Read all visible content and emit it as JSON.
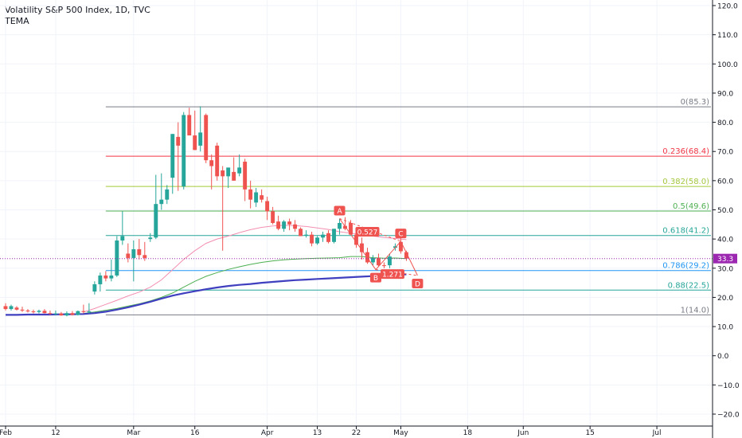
{
  "header": {
    "title": "Volatility S&P 500 Index, 1D, TVC",
    "indicator": "TEMA"
  },
  "colors": {
    "up": "#26a69a",
    "down": "#ef5350",
    "fast_ma": "#f48fb1",
    "mid_ma": "#4caf50",
    "slow_ma": "#3f3fbf",
    "price_line": "#9c27b0",
    "pattern": "#ef5350"
  },
  "chart_data": {
    "type": "candlestick",
    "title": "Volatility S&P 500 Index, 1D, TVC",
    "ylim": [
      -20,
      120
    ],
    "xlim": [
      -1,
      127
    ],
    "y_ticks": [
      -20,
      -10,
      0,
      10,
      20,
      30,
      40,
      50,
      60,
      70,
      80,
      90,
      100,
      110,
      120
    ],
    "y_tick_labels": [
      "−20.0",
      "−10.0",
      "0.0",
      "10.0",
      "20.0",
      "30.0",
      "40.0",
      "50.0",
      "60.0",
      "70.0",
      "80.0",
      "90.0",
      "100.0",
      "110.0",
      "120.0"
    ],
    "x_ticks": [
      {
        "label": "Feb",
        "x": 0
      },
      {
        "label": "12",
        "x": 9
      },
      {
        "label": "Mar",
        "x": 23
      },
      {
        "label": "16",
        "x": 34
      },
      {
        "label": "Apr",
        "x": 47
      },
      {
        "label": "13",
        "x": 56
      },
      {
        "label": "22",
        "x": 63
      },
      {
        "label": "May",
        "x": 71
      },
      {
        "label": "18",
        "x": 83
      },
      {
        "label": "Jun",
        "x": 93
      },
      {
        "label": "15",
        "x": 105
      },
      {
        "label": "Jul",
        "x": 117
      }
    ],
    "candles": [
      [
        0,
        17.0,
        18.0,
        15.5,
        16.0
      ],
      [
        1,
        16.0,
        17.5,
        15.5,
        17.0
      ],
      [
        2,
        16.5,
        17.0,
        15.5,
        15.8
      ],
      [
        3,
        15.8,
        16.8,
        15.0,
        15.5
      ],
      [
        4,
        15.5,
        16.0,
        14.8,
        15.2
      ],
      [
        5,
        15.2,
        15.8,
        14.5,
        15.0
      ],
      [
        6,
        15.0,
        15.8,
        14.5,
        15.4
      ],
      [
        7,
        15.4,
        16.0,
        14.5,
        14.6
      ],
      [
        8,
        14.6,
        15.5,
        14.0,
        14.4
      ],
      [
        9,
        14.4,
        15.5,
        13.8,
        14.5
      ],
      [
        10,
        14.5,
        15.0,
        13.7,
        13.8
      ],
      [
        11,
        13.8,
        15.2,
        13.5,
        14.6
      ],
      [
        12,
        14.6,
        15.3,
        13.8,
        14.0
      ],
      [
        13,
        14.0,
        15.5,
        13.8,
        15.3
      ],
      [
        14,
        15.3,
        17.5,
        14.5,
        15.0
      ],
      [
        15,
        15.0,
        18.0,
        14.5,
        15.2
      ],
      [
        16,
        22.0,
        25.5,
        21.0,
        24.5
      ],
      [
        17,
        24.5,
        28.5,
        22.0,
        27.5
      ],
      [
        18,
        27.5,
        29.0,
        25.5,
        26.5
      ],
      [
        19,
        26.5,
        33.0,
        25.5,
        27.5
      ],
      [
        20,
        27.5,
        41.0,
        27.0,
        39.5
      ],
      [
        21,
        39.5,
        49.5,
        38.0,
        41.0
      ],
      [
        22,
        35.0,
        38.5,
        32.0,
        33.5
      ],
      [
        23,
        33.5,
        39.5,
        25.5,
        36.5
      ],
      [
        24,
        36.5,
        40.0,
        33.0,
        34.5
      ],
      [
        25,
        34.5,
        39.0,
        32.5,
        33.5
      ],
      [
        26,
        40.0,
        42.0,
        39.0,
        40.5
      ],
      [
        27,
        40.5,
        62.0,
        40.0,
        52.0
      ],
      [
        28,
        52.0,
        62.5,
        50.0,
        53.5
      ],
      [
        29,
        53.5,
        58.5,
        52.0,
        57.0
      ],
      [
        30,
        61.0,
        76.0,
        55.5,
        76.0
      ],
      [
        31,
        75.0,
        80.0,
        56.5,
        72.0
      ],
      [
        32,
        58.0,
        83.5,
        57.0,
        82.5
      ],
      [
        33,
        82.5,
        85.0,
        76.0,
        75.5
      ],
      [
        34,
        75.5,
        84.0,
        70.5,
        70.5
      ],
      [
        35,
        72.0,
        85.5,
        70.0,
        76.5
      ],
      [
        36,
        82.5,
        83.0,
        66.0,
        67.0
      ],
      [
        37,
        67.0,
        69.0,
        57.0,
        65.0
      ],
      [
        38,
        72.0,
        73.0,
        60.0,
        61.5
      ],
      [
        39,
        63.5,
        65.0,
        36.0,
        61.5
      ],
      [
        40,
        61.5,
        64.0,
        57.5,
        64.5
      ],
      [
        41,
        63.0,
        68.0,
        60.0,
        60.0
      ],
      [
        42,
        62.5,
        69.0,
        61.5,
        64.5
      ],
      [
        43,
        66.5,
        67.5,
        53.0,
        57.0
      ],
      [
        44,
        57.0,
        60.0,
        50.5,
        53.5
      ],
      [
        45,
        52.5,
        57.5,
        51.0,
        56.0
      ],
      [
        46,
        55.0,
        57.0,
        52.5,
        53.5
      ],
      [
        47,
        53.0,
        54.5,
        46.5,
        49.5
      ],
      [
        48,
        49.5,
        51.0,
        45.0,
        45.5
      ],
      [
        49,
        46.0,
        48.0,
        43.0,
        43.5
      ],
      [
        50,
        43.5,
        46.5,
        42.5,
        46.0
      ],
      [
        51,
        46.0,
        47.0,
        43.0,
        45.0
      ],
      [
        52,
        45.0,
        46.5,
        42.5,
        43.5
      ],
      [
        53,
        43.5,
        44.0,
        41.0,
        41.0
      ],
      [
        54,
        41.5,
        43.0,
        40.5,
        41.5
      ],
      [
        55,
        41.5,
        42.5,
        37.5,
        38.5
      ],
      [
        56,
        38.5,
        41.0,
        38.0,
        40.5
      ],
      [
        57,
        40.5,
        42.5,
        39.0,
        41.5
      ],
      [
        58,
        42.0,
        43.0,
        38.5,
        39.0
      ],
      [
        59,
        39.0,
        43.5,
        38.5,
        43.5
      ],
      [
        60,
        43.5,
        47.0,
        41.5,
        45.5
      ],
      [
        61,
        44.5,
        47.5,
        43.0,
        43.5
      ],
      [
        62,
        45.5,
        46.5,
        42.0,
        41.5
      ],
      [
        63,
        41.5,
        42.0,
        37.0,
        38.0
      ],
      [
        64,
        38.5,
        40.5,
        33.0,
        35.5
      ],
      [
        65,
        35.5,
        37.0,
        31.5,
        32.0
      ],
      [
        66,
        32.0,
        34.5,
        31.0,
        33.5
      ],
      [
        67,
        33.5,
        35.0,
        30.5,
        31.0
      ],
      [
        68,
        31.0,
        32.0,
        30.0,
        30.8
      ],
      [
        69,
        31.0,
        35.0,
        30.0,
        34.0
      ],
      [
        70,
        37.0,
        38.5,
        36.0,
        37.5
      ],
      [
        71,
        39.0,
        40.5,
        35.0,
        35.8
      ],
      [
        72,
        35.5,
        36.0,
        32.5,
        33.3
      ]
    ],
    "series": [
      {
        "name": "",
        "color": "#f48fb1",
        "points": [
          [
            14,
            15.0
          ],
          [
            16,
            16.2
          ],
          [
            18,
            17.6
          ],
          [
            20,
            19.0
          ],
          [
            22,
            20.5
          ],
          [
            24,
            21.8
          ],
          [
            26,
            23.5
          ],
          [
            28,
            26.0
          ],
          [
            30,
            29.5
          ],
          [
            32,
            33.0
          ],
          [
            34,
            36.0
          ],
          [
            36,
            38.5
          ],
          [
            38,
            40.0
          ],
          [
            40,
            41.0
          ],
          [
            42,
            42.2
          ],
          [
            44,
            43.2
          ],
          [
            46,
            44.0
          ],
          [
            48,
            44.5
          ],
          [
            50,
            44.7
          ],
          [
            52,
            44.6
          ],
          [
            54,
            44.3
          ],
          [
            56,
            43.8
          ],
          [
            58,
            43.3
          ],
          [
            60,
            42.5
          ],
          [
            62,
            42.0
          ],
          [
            64,
            41.5
          ],
          [
            66,
            41.0
          ],
          [
            68,
            40.5
          ],
          [
            70,
            40.2
          ],
          [
            72,
            39.8
          ]
        ]
      },
      {
        "name": "",
        "color": "#4caf50",
        "points": [
          [
            14,
            14.5
          ],
          [
            16,
            15.0
          ],
          [
            18,
            15.6
          ],
          [
            20,
            16.2
          ],
          [
            22,
            17.0
          ],
          [
            24,
            17.8
          ],
          [
            26,
            18.8
          ],
          [
            28,
            20.0
          ],
          [
            30,
            21.5
          ],
          [
            32,
            23.5
          ],
          [
            34,
            25.5
          ],
          [
            36,
            27.2
          ],
          [
            38,
            28.5
          ],
          [
            40,
            29.6
          ],
          [
            42,
            30.5
          ],
          [
            44,
            31.3
          ],
          [
            46,
            32.0
          ],
          [
            48,
            32.5
          ],
          [
            50,
            32.9
          ],
          [
            52,
            33.1
          ],
          [
            54,
            33.3
          ],
          [
            56,
            33.4
          ],
          [
            58,
            33.5
          ],
          [
            60,
            33.6
          ],
          [
            62,
            34.0
          ],
          [
            64,
            34.0
          ],
          [
            66,
            33.6
          ],
          [
            68,
            33.4
          ],
          [
            70,
            33.5
          ],
          [
            72,
            33.3
          ]
        ]
      },
      {
        "name": "",
        "color": "#3f3fbf",
        "points": [
          [
            0,
            14.0
          ],
          [
            2,
            14.0
          ],
          [
            4,
            14.1
          ],
          [
            6,
            14.1
          ],
          [
            8,
            14.1
          ],
          [
            10,
            14.2
          ],
          [
            12,
            14.2
          ],
          [
            14,
            14.3
          ],
          [
            16,
            14.6
          ],
          [
            18,
            15.1
          ],
          [
            20,
            15.8
          ],
          [
            22,
            16.6
          ],
          [
            24,
            17.5
          ],
          [
            26,
            18.5
          ],
          [
            28,
            19.6
          ],
          [
            30,
            20.6
          ],
          [
            32,
            21.4
          ],
          [
            34,
            22.1
          ],
          [
            36,
            22.8
          ],
          [
            38,
            23.4
          ],
          [
            40,
            23.9
          ],
          [
            42,
            24.3
          ],
          [
            44,
            24.6
          ],
          [
            46,
            25.0
          ],
          [
            48,
            25.3
          ],
          [
            50,
            25.6
          ],
          [
            52,
            25.9
          ],
          [
            54,
            26.1
          ],
          [
            56,
            26.3
          ],
          [
            58,
            26.5
          ],
          [
            60,
            26.7
          ],
          [
            62,
            26.9
          ],
          [
            64,
            27.1
          ],
          [
            66,
            27.3
          ],
          [
            68,
            27.5
          ],
          [
            70,
            27.7
          ],
          [
            72,
            27.9
          ]
        ]
      }
    ],
    "fib_levels": [
      {
        "ratio": "0",
        "value": 85.3,
        "color": "#787b86"
      },
      {
        "ratio": "0.236",
        "value": 68.4,
        "color": "#f23645"
      },
      {
        "ratio": "0.382",
        "value": 58.0,
        "color": "#a5c93d"
      },
      {
        "ratio": "0.5",
        "value": 49.6,
        "color": "#4caf50"
      },
      {
        "ratio": "0.618",
        "value": 41.2,
        "color": "#26a69a"
      },
      {
        "ratio": "0.786",
        "value": 29.2,
        "color": "#2196f3"
      },
      {
        "ratio": "0.88",
        "value": 22.5,
        "color": "#26a69a"
      },
      {
        "ratio": "1",
        "value": 14.0,
        "color": "#787b86"
      }
    ],
    "fib_labels": [
      "0(85.3)",
      "0.236(68.4)",
      "0.382(58.0)",
      "0.5(49.6)",
      "0.618(41.2)",
      "0.786(29.2)",
      "0.88(22.5)",
      "1(14.0)"
    ],
    "fib_x_start": 18,
    "current_price": {
      "value": 33.3,
      "label": "33.3"
    },
    "pattern": {
      "points": [
        {
          "label": "A",
          "x": 60,
          "y": 47.0
        },
        {
          "label": "B",
          "x": 66.5,
          "y": 29.5
        },
        {
          "label": "C",
          "x": 71,
          "y": 39.2
        },
        {
          "label": "D",
          "x": 74,
          "y": 27.5
        }
      ],
      "ratios": [
        {
          "label": "0.527",
          "x": 65,
          "y": 42.5
        },
        {
          "label": "1.271",
          "x": 69.5,
          "y": 28.0
        }
      ]
    }
  }
}
